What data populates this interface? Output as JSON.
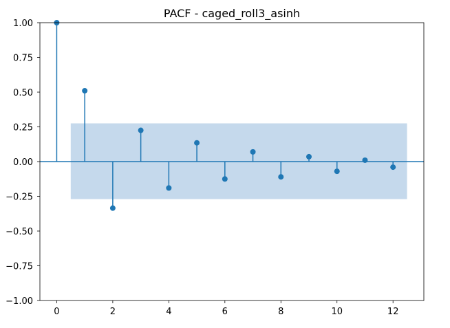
{
  "chart_data": {
    "type": "scatter",
    "subtype": "pacf-stem",
    "title": "PACF - caged_roll3_asinh",
    "xlabel": "",
    "ylabel": "",
    "xlim": [
      -0.6,
      13.1
    ],
    "ylim": [
      -1.0,
      1.0
    ],
    "x_ticks": [
      0,
      2,
      4,
      6,
      8,
      10,
      12
    ],
    "x_tick_labels": [
      "0",
      "2",
      "4",
      "6",
      "8",
      "10",
      "12"
    ],
    "y_ticks": [
      1.0,
      0.75,
      0.5,
      0.25,
      0.0,
      -0.25,
      -0.5,
      -0.75,
      -1.0
    ],
    "y_tick_labels": [
      "1.00",
      "0.75",
      "0.50",
      "0.25",
      "0.00",
      "−0.25",
      "−0.50",
      "−0.75",
      "−1.00"
    ],
    "lags": [
      0,
      1,
      2,
      3,
      4,
      5,
      6,
      7,
      8,
      9,
      10,
      11,
      12
    ],
    "values": [
      1.0,
      0.51,
      -0.335,
      0.225,
      -0.19,
      0.135,
      -0.125,
      0.07,
      -0.11,
      0.035,
      -0.07,
      0.01,
      -0.04
    ],
    "confidence_band": {
      "x_from": 0.5,
      "x_to": 12.5,
      "upper": 0.275,
      "lower": -0.27
    },
    "grid": false,
    "colors": {
      "stem": "#1f77b4",
      "band": "#c5d9ec",
      "zero_line": "#1f77b4"
    }
  }
}
